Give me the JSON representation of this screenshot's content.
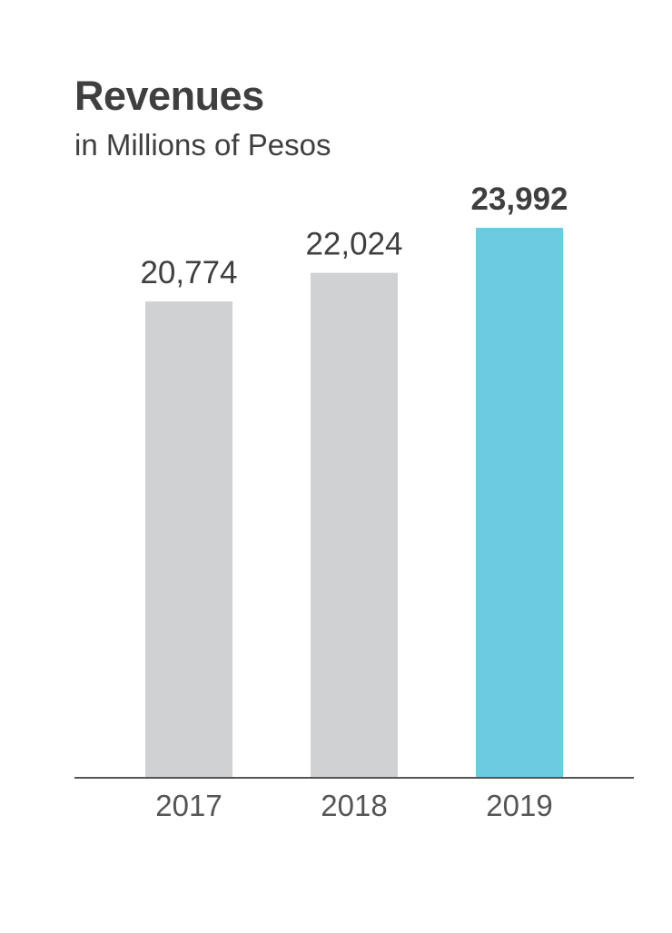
{
  "chart_data": {
    "type": "bar",
    "title": "Revenues",
    "subtitle": "in Millions of Pesos",
    "categories": [
      "2017",
      "2018",
      "2019"
    ],
    "values": [
      20774,
      22024,
      23992
    ],
    "value_labels": [
      "20,774",
      "22,024",
      "23,992"
    ],
    "highlight_index": 2,
    "xlabel": "",
    "ylabel": "",
    "ylim": [
      0,
      23992
    ],
    "grid": false,
    "legend": "none",
    "colors": {
      "bar": "#d0d1d3",
      "highlight": "#6bcbe0",
      "axis": "#555555",
      "text": "#3f3f3f"
    }
  }
}
